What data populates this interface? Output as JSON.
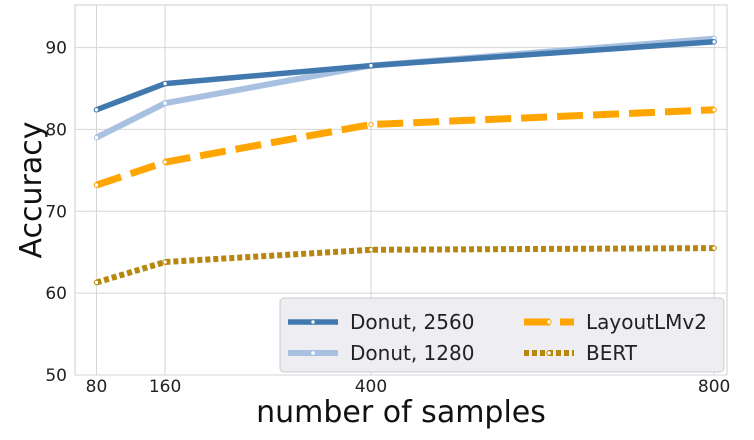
{
  "chart_data": {
    "type": "line",
    "xlabel": "number of samples",
    "ylabel": "Accuracy",
    "x_ticks": [
      80,
      160,
      400,
      800
    ],
    "y_ticks": [
      50,
      60,
      70,
      80,
      90
    ],
    "xlim": [
      55,
      815
    ],
    "ylim": [
      50,
      95.2
    ],
    "grid": true,
    "legend_position": "lower-right",
    "series": [
      {
        "name": "Donut, 2560",
        "color": "#4178ae",
        "style": "solid",
        "x": [
          80,
          160,
          400,
          800
        ],
        "y": [
          82.4,
          85.6,
          87.8,
          90.7
        ]
      },
      {
        "name": "Donut, 1280",
        "color": "#a9c1e1",
        "style": "solid",
        "x": [
          80,
          160,
          400,
          800
        ],
        "y": [
          79.0,
          83.2,
          87.8,
          91.1
        ]
      },
      {
        "name": "LayoutLMv2",
        "color": "#ffa500",
        "style": "dashed",
        "x": [
          80,
          160,
          400,
          800
        ],
        "y": [
          73.2,
          76.0,
          80.6,
          82.4
        ]
      },
      {
        "name": "BERT",
        "color": "#b8860b",
        "style": "dotted",
        "x": [
          80,
          160,
          400,
          800
        ],
        "y": [
          61.3,
          63.8,
          65.3,
          65.5
        ]
      }
    ]
  }
}
